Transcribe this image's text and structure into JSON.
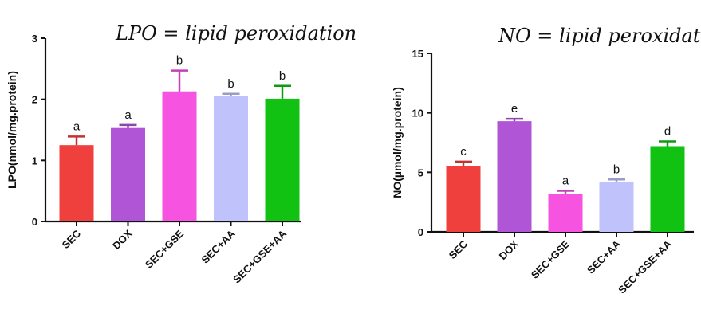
{
  "annotations": {
    "left": "LPO = lipid peroxidation",
    "right": "NO = lipid peroxidation"
  },
  "chart_data": [
    {
      "type": "bar",
      "title": "",
      "xlabel": "",
      "ylabel": "LPO(nmol/mg.protein)",
      "ylim": [
        0,
        3
      ],
      "yticks": [
        0,
        1,
        2,
        3
      ],
      "categories": [
        "SEC",
        "DOX",
        "SEC+GSE",
        "SEC+AA",
        "SEC+GSE+AA"
      ],
      "values": [
        1.25,
        1.53,
        2.13,
        2.06,
        2.01
      ],
      "errors": [
        0.14,
        0.05,
        0.34,
        0.03,
        0.21
      ],
      "significance": [
        "a",
        "a",
        "b",
        "b",
        "b"
      ],
      "colors": [
        "#f0403e",
        "#b055d6",
        "#f553e0",
        "#c0c2fb",
        "#12c212"
      ],
      "grid": false,
      "legend": "none"
    },
    {
      "type": "bar",
      "title": "",
      "xlabel": "",
      "ylabel": "NO(µmol/mg.protein)",
      "ylim": [
        0,
        15
      ],
      "yticks": [
        0,
        5,
        10,
        15
      ],
      "categories": [
        "SEC",
        "DOX",
        "SEC+GSE",
        "SEC+AA",
        "SEC+GSE+AA"
      ],
      "values": [
        5.5,
        9.3,
        3.2,
        4.2,
        7.2
      ],
      "errors": [
        0.4,
        0.2,
        0.25,
        0.2,
        0.4
      ],
      "significance": [
        "c",
        "e",
        "a",
        "b",
        "d"
      ],
      "colors": [
        "#f0403e",
        "#b055d6",
        "#f553e0",
        "#c0c2fb",
        "#12c212"
      ],
      "grid": false,
      "legend": "none"
    }
  ]
}
